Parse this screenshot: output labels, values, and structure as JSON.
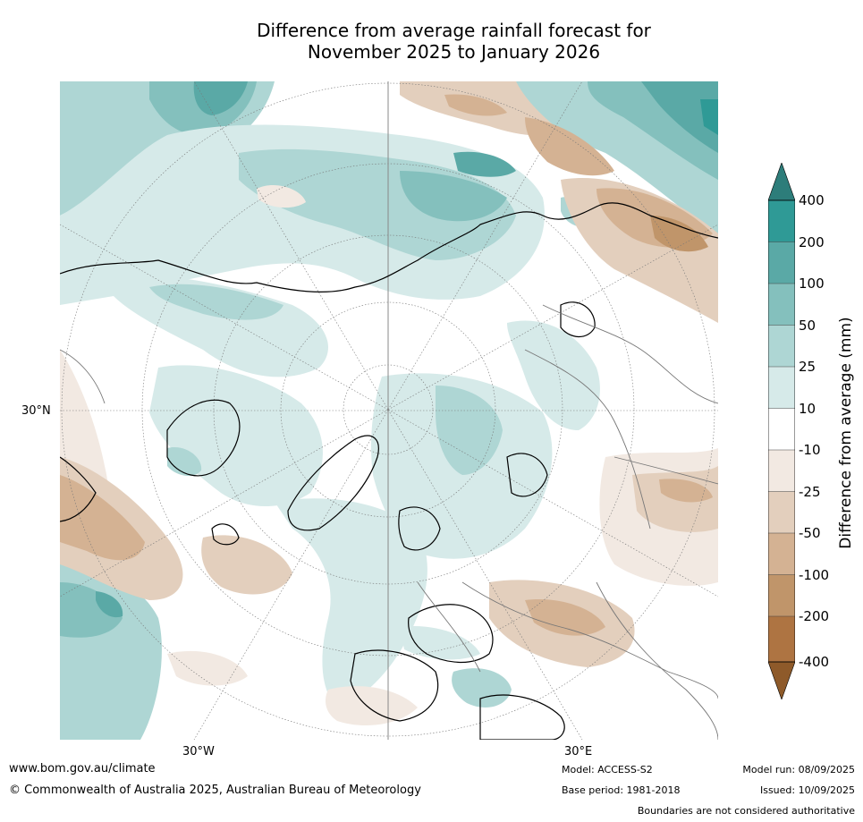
{
  "title": {
    "line1": "Difference from average rainfall forecast for",
    "line2": "November 2025 to January 2026"
  },
  "map_labels": {
    "lat_30n": "30°N",
    "lon_30w": "30°W",
    "lon_30e": "30°E"
  },
  "colorbar": {
    "label": "Difference from average (mm)",
    "ticks": [
      "400",
      "200",
      "100",
      "50",
      "25",
      "10",
      "-10",
      "-25",
      "-50",
      "-100",
      "-200",
      "-400"
    ],
    "colors": {
      "400_plus": "#2d7d7a",
      "200_400": "#2f9a96",
      "100_200": "#5aa9a6",
      "50_100": "#84c0bd",
      "25_50": "#aed6d4",
      "10_25": "#d6eae9",
      "neutral": "#ffffff",
      "m10_m25": "#f2e9e2",
      "m25_m50": "#e3cfbd",
      "m50_m100": "#d4b293",
      "m100_m200": "#c0956a",
      "m200_m400": "#ae7442",
      "m400_minus": "#8e5a2a"
    }
  },
  "footer": {
    "website": "www.bom.gov.au/climate",
    "copyright": "© Commonwealth of Australia 2025, Australian Bureau of Meteorology",
    "model": "Model: ACCESS-S2",
    "base_period": "Base period: 1981-2018",
    "model_run": "Model run: 08/09/2025",
    "issued": "Issued: 10/09/2025",
    "disclaimer": "Boundaries are not considered authoritative"
  }
}
